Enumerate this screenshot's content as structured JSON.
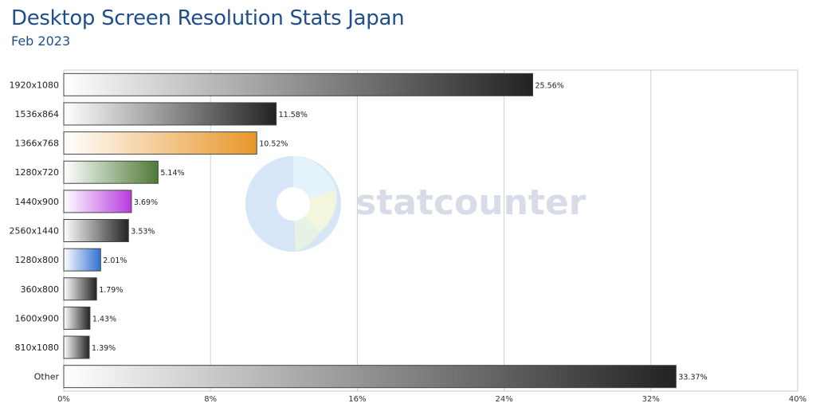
{
  "header": {
    "title": "Desktop Screen Resolution Stats Japan",
    "subtitle": "Feb 2023"
  },
  "watermark": {
    "text": "statcounter"
  },
  "chart_data": {
    "type": "bar",
    "orientation": "horizontal",
    "title": "Desktop Screen Resolution Stats Japan",
    "subtitle": "Feb 2023",
    "xlim": [
      0,
      40
    ],
    "ticks": [
      "0%",
      "8%",
      "16%",
      "24%",
      "32%",
      "40%"
    ],
    "tick_values": [
      0,
      8,
      16,
      24,
      32,
      40
    ],
    "grid": true,
    "legend": "none",
    "categories": [
      "1920x1080",
      "1536x864",
      "1366x768",
      "1280x720",
      "1440x900",
      "2560x1440",
      "1280x800",
      "360x800",
      "1600x900",
      "810x1080",
      "Other"
    ],
    "values": [
      25.56,
      11.58,
      10.52,
      5.14,
      3.69,
      3.53,
      2.01,
      1.79,
      1.43,
      1.39,
      33.37
    ],
    "labels": [
      "25.56%",
      "11.58%",
      "10.52%",
      "5.14%",
      "3.69%",
      "3.53%",
      "2.01%",
      "1.79%",
      "1.43%",
      "1.39%",
      "33.37%"
    ],
    "colors": [
      "#222222",
      "#222222",
      "#e8962a",
      "#4e7a35",
      "#b93be0",
      "#222222",
      "#2f6fd1",
      "#222222",
      "#222222",
      "#222222",
      "#222222"
    ]
  }
}
